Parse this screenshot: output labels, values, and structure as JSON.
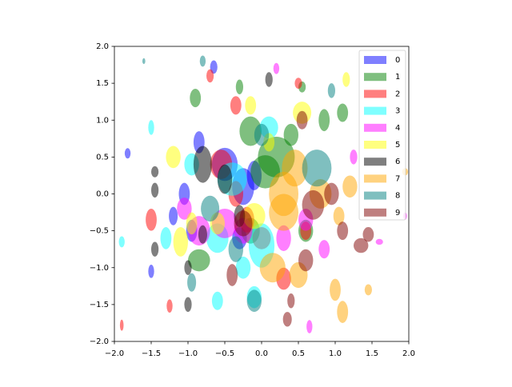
{
  "chart_data": {
    "type": "ellipse",
    "xlim": [
      -2,
      2
    ],
    "ylim": [
      -2,
      2
    ],
    "xticks": [
      {
        "value": -2,
        "label": "−2.0"
      },
      {
        "value": -1.5,
        "label": "−1.5"
      },
      {
        "value": -1,
        "label": "−1.0"
      },
      {
        "value": -0.5,
        "label": "−0.5"
      },
      {
        "value": 0,
        "label": "0.0"
      },
      {
        "value": 0.5,
        "label": "0.5"
      },
      {
        "value": 1,
        "label": "1.0"
      },
      {
        "value": 1.5,
        "label": "1.5"
      },
      {
        "value": 2,
        "label": "2.0"
      }
    ],
    "yticks": [
      {
        "value": -2,
        "label": "−2.0"
      },
      {
        "value": -1.5,
        "label": "−1.5"
      },
      {
        "value": -1,
        "label": "−1.0"
      },
      {
        "value": -0.5,
        "label": "−0.5"
      },
      {
        "value": 0,
        "label": "0.0"
      },
      {
        "value": 0.5,
        "label": "0.5"
      },
      {
        "value": 1,
        "label": "1.0"
      },
      {
        "value": 1.5,
        "label": "1.5"
      },
      {
        "value": 2,
        "label": "2.0"
      }
    ],
    "alpha": 0.5,
    "legend": "upper right",
    "series": [
      {
        "name": "0",
        "color": "#0000ff",
        "x": [
          -0.5,
          -0.25,
          -1.05,
          -0.85,
          -0.1,
          -1.82,
          -0.95,
          -0.65,
          -1.2,
          -1.5,
          -0.3
        ],
        "y": [
          0.4,
          0.1,
          0.0,
          0.7,
          0.25,
          0.55,
          -0.5,
          1.72,
          -0.3,
          -1.05,
          -0.6
        ],
        "width": [
          0.35,
          0.3,
          0.15,
          0.15,
          0.2,
          0.08,
          0.15,
          0.1,
          0.12,
          0.08,
          0.2
        ],
        "height": [
          0.45,
          0.5,
          0.3,
          0.3,
          0.4,
          0.14,
          0.3,
          0.18,
          0.25,
          0.18,
          0.3
        ]
      },
      {
        "name": "1",
        "color": "#008000",
        "x": [
          0.2,
          0.05,
          -0.15,
          0.55,
          -0.85,
          0.85,
          -0.9,
          -0.3,
          0.4,
          -0.15,
          1.1,
          0.6
        ],
        "y": [
          0.5,
          0.3,
          0.85,
          1.45,
          -0.9,
          1.0,
          1.3,
          1.45,
          0.8,
          -0.5,
          1.1,
          -0.5
        ],
        "width": [
          0.5,
          0.4,
          0.3,
          0.1,
          0.3,
          0.15,
          0.15,
          0.1,
          0.2,
          0.25,
          0.15,
          0.2
        ],
        "height": [
          0.55,
          0.45,
          0.4,
          0.15,
          0.3,
          0.3,
          0.25,
          0.2,
          0.3,
          0.35,
          0.25,
          0.3
        ]
      },
      {
        "name": "2",
        "color": "#ff0000",
        "x": [
          -0.2,
          -0.55,
          0.0,
          -1.25,
          -0.7,
          0.5,
          -1.9,
          -1.5,
          -0.35,
          0.3,
          0.6,
          -0.35
        ],
        "y": [
          -0.35,
          0.4,
          -0.6,
          -1.52,
          1.6,
          1.5,
          -1.78,
          -0.35,
          1.2,
          -1.15,
          -0.5,
          0.0
        ],
        "width": [
          0.2,
          0.3,
          0.25,
          0.08,
          0.1,
          0.1,
          0.05,
          0.15,
          0.15,
          0.2,
          0.15,
          0.2
        ],
        "height": [
          0.35,
          0.4,
          0.3,
          0.18,
          0.18,
          0.15,
          0.15,
          0.3,
          0.25,
          0.3,
          0.25,
          0.35
        ]
      },
      {
        "name": "3",
        "color": "#00ffff",
        "x": [
          -0.4,
          0.0,
          -0.6,
          -1.5,
          -0.1,
          -0.25,
          -0.95,
          -1.9,
          -0.6,
          -1.3,
          0.1
        ],
        "y": [
          0.2,
          -0.7,
          -0.6,
          0.9,
          -1.4,
          -1.0,
          0.4,
          -0.65,
          -1.45,
          -0.6,
          0.9
        ],
        "width": [
          0.4,
          0.35,
          0.3,
          0.08,
          0.2,
          0.2,
          0.2,
          0.08,
          0.15,
          0.15,
          0.25
        ],
        "height": [
          0.45,
          0.6,
          0.4,
          0.2,
          0.3,
          0.3,
          0.3,
          0.15,
          0.25,
          0.3,
          0.3
        ]
      },
      {
        "name": "4",
        "color": "#ff00ff",
        "x": [
          -0.85,
          0.3,
          -0.5,
          0.6,
          1.25,
          1.6,
          -1.05,
          0.2,
          0.65,
          -0.25,
          1.95,
          0.85
        ],
        "y": [
          -0.5,
          -0.6,
          -0.4,
          -0.35,
          0.5,
          -0.65,
          -0.2,
          1.7,
          -1.8,
          -0.5,
          -0.3,
          -0.75
        ],
        "width": [
          0.3,
          0.2,
          0.35,
          0.2,
          0.1,
          0.1,
          0.2,
          0.08,
          0.08,
          0.25,
          0.05,
          0.15
        ],
        "height": [
          0.4,
          0.35,
          0.4,
          0.3,
          0.2,
          0.08,
          0.3,
          0.15,
          0.18,
          0.35,
          0.1,
          0.25
        ]
      },
      {
        "name": "5",
        "color": "#ffff00",
        "x": [
          -0.1,
          -1.1,
          0.55,
          -0.6,
          -0.15,
          1.15,
          -1.2,
          0.1,
          -0.95
        ],
        "y": [
          -0.3,
          -0.65,
          1.1,
          -0.4,
          1.2,
          1.55,
          0.5,
          0.7,
          -0.4
        ],
        "width": [
          0.3,
          0.2,
          0.25,
          0.2,
          0.15,
          0.1,
          0.2,
          0.15,
          0.15
        ],
        "height": [
          0.35,
          0.4,
          0.3,
          0.3,
          0.25,
          0.2,
          0.3,
          0.25,
          0.3
        ]
      },
      {
        "name": "6",
        "color": "#000000",
        "x": [
          -0.8,
          -0.5,
          -1.45,
          -1.45,
          -1.0,
          -0.8,
          -1.0,
          -0.3,
          0.1,
          -1.45
        ],
        "y": [
          0.4,
          0.2,
          0.3,
          -0.75,
          -1.5,
          -0.55,
          -1.0,
          -0.3,
          1.55,
          0.05
        ],
        "width": [
          0.25,
          0.2,
          0.1,
          0.1,
          0.1,
          0.12,
          0.1,
          0.15,
          0.1,
          0.1
        ],
        "height": [
          0.5,
          0.4,
          0.15,
          0.2,
          0.2,
          0.25,
          0.2,
          0.3,
          0.2,
          0.2
        ]
      },
      {
        "name": "7",
        "color": "#ffa500",
        "x": [
          0.3,
          0.45,
          0.8,
          1.0,
          0.15,
          1.1,
          0.5,
          1.2,
          0.3,
          1.45,
          1.05,
          1.95
        ],
        "y": [
          0.0,
          0.35,
          0.0,
          -1.3,
          -1.0,
          -1.6,
          -1.1,
          0.1,
          -0.25,
          -1.3,
          -0.3,
          0.3
        ],
        "width": [
          0.4,
          0.35,
          0.3,
          0.15,
          0.35,
          0.15,
          0.25,
          0.2,
          0.4,
          0.1,
          0.15,
          0.08
        ],
        "height": [
          0.6,
          0.5,
          0.4,
          0.3,
          0.4,
          0.3,
          0.35,
          0.3,
          0.5,
          0.15,
          0.25,
          0.1
        ]
      },
      {
        "name": "8",
        "color": "#008080",
        "x": [
          0.75,
          -0.1,
          -0.95,
          -0.35,
          -1.6,
          -0.8,
          0.0,
          -0.7,
          0.95
        ],
        "y": [
          0.35,
          -1.45,
          -1.2,
          -0.75,
          1.8,
          1.8,
          0.8,
          -0.2,
          1.4
        ],
        "width": [
          0.4,
          0.2,
          0.12,
          0.2,
          0.04,
          0.08,
          0.2,
          0.25,
          0.1
        ],
        "height": [
          0.5,
          0.3,
          0.25,
          0.35,
          0.08,
          0.15,
          0.3,
          0.35,
          0.2
        ]
      },
      {
        "name": "9",
        "color": "#800000",
        "x": [
          0.6,
          -0.4,
          0.35,
          1.35,
          1.45,
          0.55,
          0.95,
          -0.25,
          0.7,
          1.1,
          0.4
        ],
        "y": [
          -0.9,
          -1.1,
          -1.7,
          -0.7,
          -0.55,
          1.0,
          0.0,
          -0.4,
          -0.15,
          -0.5,
          -1.45
        ],
        "width": [
          0.2,
          0.15,
          0.12,
          0.2,
          0.15,
          0.15,
          0.2,
          0.25,
          0.3,
          0.15,
          0.1
        ],
        "height": [
          0.3,
          0.3,
          0.2,
          0.2,
          0.2,
          0.25,
          0.3,
          0.35,
          0.4,
          0.25,
          0.2
        ]
      }
    ]
  }
}
